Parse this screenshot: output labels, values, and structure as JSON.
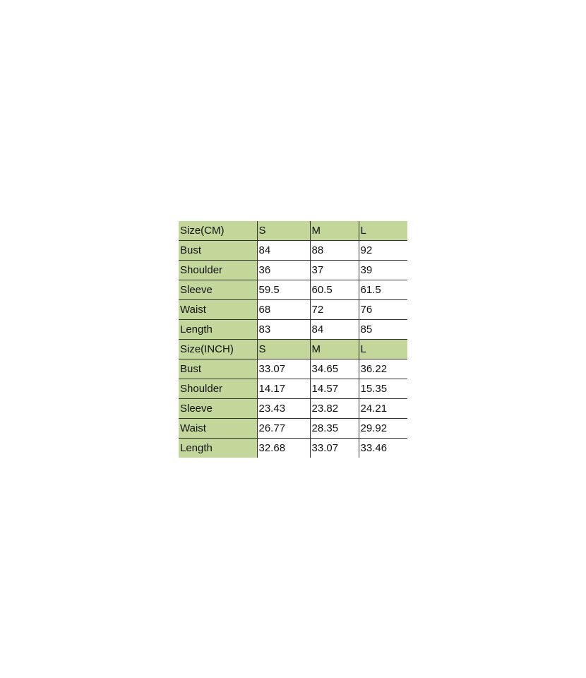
{
  "colors": {
    "header_green": "#c4d79b"
  },
  "tables": [
    {
      "header": [
        "Size(CM)",
        "S",
        "M",
        "L"
      ],
      "rows": [
        [
          "Bust",
          "84",
          "88",
          "92"
        ],
        [
          "Shoulder",
          "36",
          "37",
          "39"
        ],
        [
          "Sleeve",
          "59.5",
          "60.5",
          "61.5"
        ],
        [
          "Waist",
          "68",
          "72",
          "76"
        ],
        [
          "Length",
          "83",
          "84",
          "85"
        ]
      ]
    },
    {
      "header": [
        "Size(INCH)",
        "S",
        "M",
        "L"
      ],
      "rows": [
        [
          "Bust",
          "33.07",
          "34.65",
          "36.22"
        ],
        [
          "Shoulder",
          "14.17",
          "14.57",
          "15.35"
        ],
        [
          "Sleeve",
          "23.43",
          "23.82",
          "24.21"
        ],
        [
          "Waist",
          "26.77",
          "28.35",
          "29.92"
        ],
        [
          "Length",
          "32.68",
          "33.07",
          "33.46"
        ]
      ]
    }
  ]
}
